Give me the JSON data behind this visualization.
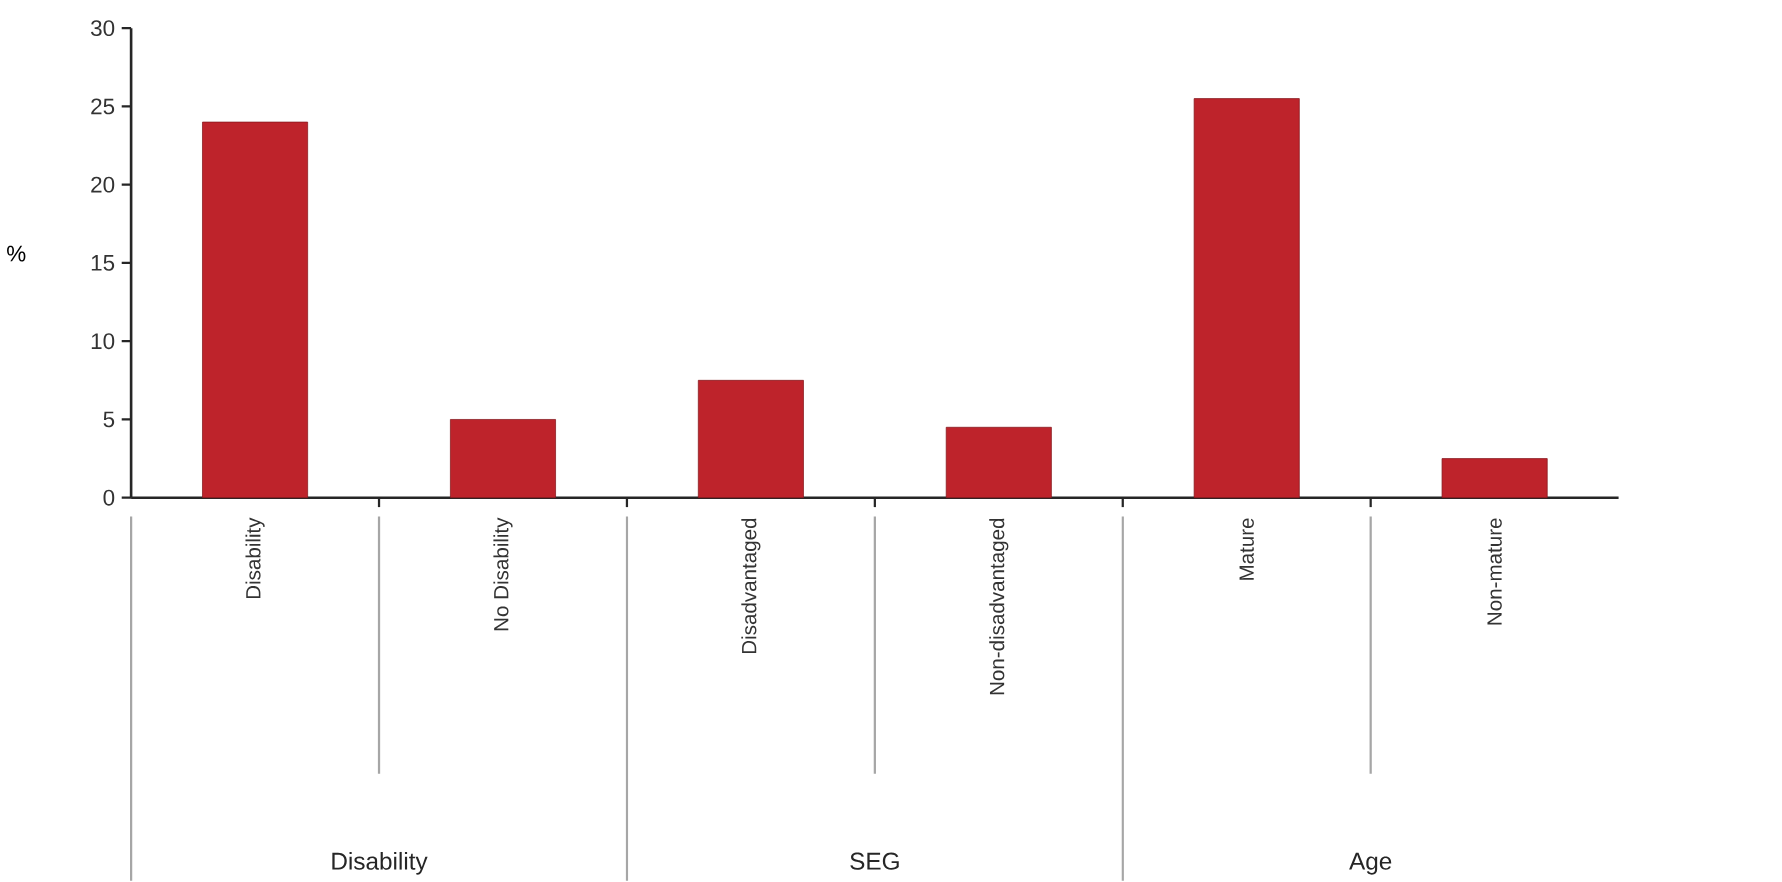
{
  "chart_data": {
    "type": "bar",
    "categories": [
      "Disability",
      "No Disability",
      "Disadvantaged",
      "Non-disadvantaged",
      "Mature",
      "Non-mature"
    ],
    "values": [
      24,
      5,
      7.5,
      4.5,
      25.5,
      2.5
    ],
    "color": "#be232b",
    "ylabel": "%",
    "ylim": [
      0,
      30
    ],
    "yticks": [
      0,
      5,
      10,
      15,
      20,
      25,
      30
    ],
    "annotations": [
      "Disability",
      "SEG",
      "Age"
    ]
  }
}
